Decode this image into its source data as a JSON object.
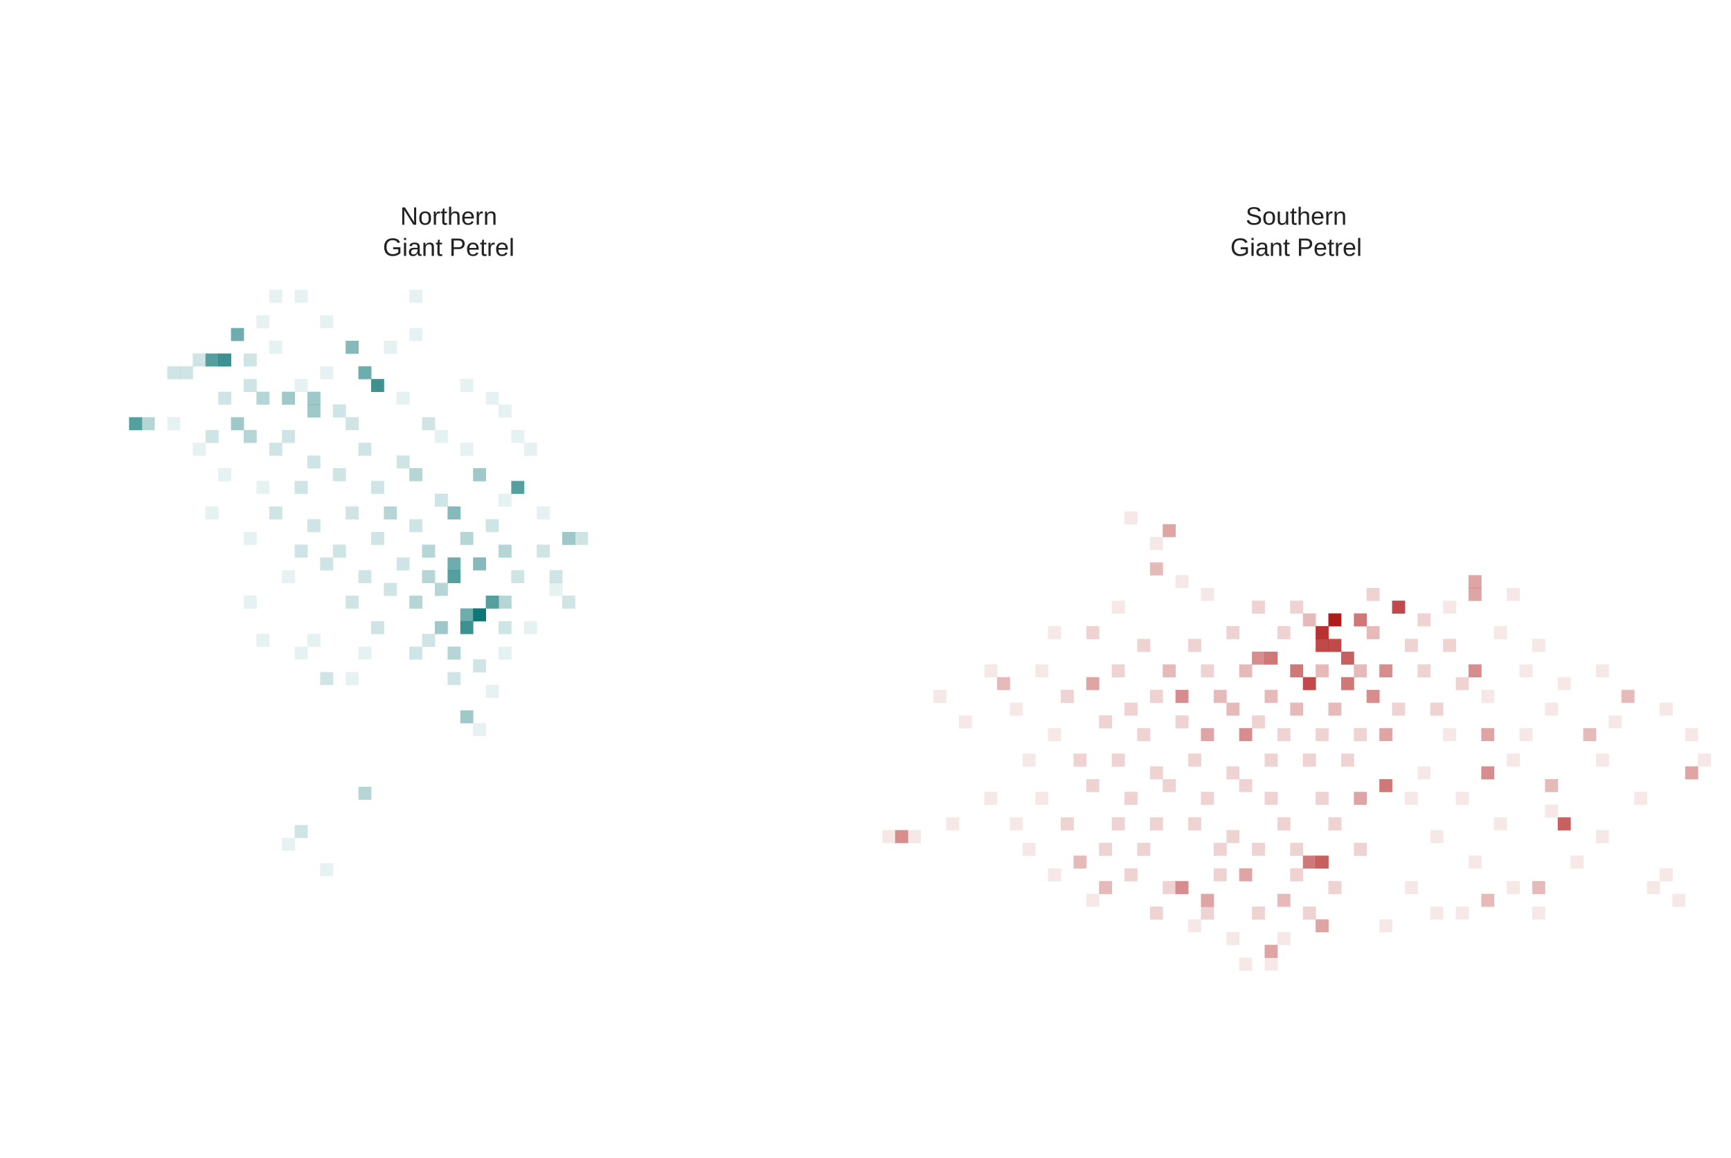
{
  "chart_data": [
    {
      "type": "heatmap",
      "title": [
        "Northern",
        "Giant Petrel"
      ],
      "color": "#0e7676",
      "clim": [
        0,
        10
      ],
      "xlim": [
        0,
        40
      ],
      "ylim": [
        50,
        0
      ],
      "x": [
        8,
        9,
        7,
        1,
        2,
        18,
        19,
        20,
        13,
        15,
        15,
        9,
        31,
        28,
        26,
        35,
        26,
        26,
        28,
        28,
        27,
        29,
        27,
        27,
        19,
        14,
        16,
        35,
        12,
        14,
        23,
        11,
        16,
        23,
        6,
        10,
        12,
        21,
        4,
        5,
        10,
        14,
        16,
        27,
        8,
        11,
        17,
        22,
        29,
        30,
        4,
        7,
        10,
        13,
        18,
        24,
        25,
        31,
        6,
        12,
        15,
        19,
        22,
        27,
        32,
        8,
        11,
        14,
        17,
        20,
        23,
        25,
        30,
        7,
        12,
        15,
        18,
        21,
        23,
        29,
        33,
        10,
        14,
        17,
        20,
        24,
        27,
        30,
        33,
        36,
        13,
        16,
        19,
        22,
        24,
        31,
        34,
        10,
        18,
        21,
        23,
        25,
        30,
        34,
        11,
        15,
        20,
        24,
        25,
        30,
        32,
        14,
        19,
        23,
        26,
        28,
        30,
        18,
        26,
        29,
        28,
        13,
        16
      ],
      "y": [
        6,
        4,
        6,
        11,
        11,
        5,
        7,
        8,
        9,
        9,
        10,
        11,
        16,
        15,
        18,
        20,
        23,
        22,
        22,
        26,
        27,
        25,
        26,
        34,
        40,
        43,
        31,
        25,
        1,
        1,
        1,
        3,
        3,
        4,
        6,
        6,
        5,
        5,
        7,
        7,
        8,
        8,
        7,
        8,
        9,
        9,
        10,
        9,
        9,
        10,
        11,
        12,
        12,
        12,
        11,
        11,
        12,
        12,
        13,
        13,
        14,
        13,
        14,
        13,
        13,
        15,
        16,
        16,
        15,
        16,
        15,
        17,
        17,
        18,
        18,
        19,
        18,
        18,
        19,
        19,
        18,
        20,
        21,
        21,
        20,
        21,
        20,
        21,
        21,
        20,
        23,
        22,
        23,
        22,
        23,
        23,
        23,
        25,
        25,
        24,
        25,
        24,
        25,
        24,
        28,
        28,
        27,
        28,
        27,
        27,
        27,
        29,
        29,
        29,
        29,
        30,
        29,
        31,
        31,
        32,
        35,
        44,
        46
      ],
      "values": [
        8,
        6,
        7,
        7,
        3,
        5,
        6,
        8,
        4,
        4,
        4,
        4,
        7,
        4,
        5,
        4,
        7,
        6,
        5,
        10,
        8,
        7,
        6,
        4,
        3,
        2,
        2,
        2,
        1,
        1,
        1,
        1,
        1,
        1,
        2,
        2,
        1,
        1,
        2,
        2,
        2,
        1,
        1,
        1,
        2,
        3,
        2,
        1,
        1,
        1,
        1,
        2,
        3,
        2,
        2,
        2,
        1,
        1,
        1,
        2,
        2,
        2,
        2,
        1,
        1,
        1,
        1,
        2,
        2,
        2,
        3,
        2,
        1,
        1,
        2,
        2,
        2,
        3,
        2,
        2,
        1,
        1,
        2,
        2,
        2,
        3,
        3,
        3,
        2,
        2,
        1,
        2,
        2,
        2,
        3,
        2,
        2,
        1,
        2,
        2,
        3,
        3,
        3,
        1,
        1,
        1,
        2,
        2,
        4,
        2,
        1,
        1,
        1,
        2,
        3,
        2,
        1,
        1,
        2,
        1,
        1,
        1,
        1
      ]
    },
    {
      "type": "heatmap",
      "title": [
        "Southern",
        "Giant Petrel"
      ],
      "color": "#b01c1c",
      "clim": [
        0,
        10
      ],
      "xlim": [
        0,
        67
      ],
      "ylim": [
        37,
        0
      ],
      "x": [
        36,
        35,
        36,
        35,
        38,
        37,
        41,
        34,
        33,
        31,
        30,
        39,
        37,
        40,
        24,
        29,
        47,
        47,
        47,
        54,
        40,
        38,
        35,
        34,
        2,
        48,
        48,
        64,
        59,
        56,
        23,
        22,
        31,
        35,
        24,
        26,
        17,
        10,
        16,
        18,
        29,
        32,
        40,
        48,
        52,
        53,
        23,
        26,
        27,
        20,
        22,
        24,
        19,
        26,
        30,
        33,
        39,
        43,
        45,
        50,
        14,
        17,
        21,
        25,
        28,
        32,
        34,
        39,
        42,
        45,
        49,
        52,
        9,
        13,
        19,
        26,
        29,
        35,
        38,
        43,
        46,
        51,
        54,
        57,
        5,
        11,
        15,
        20,
        22,
        28,
        31,
        33,
        36,
        41,
        44,
        48,
        53,
        62,
        7,
        14,
        18,
        21,
        24,
        30,
        32,
        35,
        38,
        45,
        51,
        58,
        64,
        12,
        16,
        19,
        22,
        25,
        28,
        31,
        34,
        37,
        43,
        50,
        57,
        65,
        9,
        13,
        17,
        20,
        23,
        26,
        29,
        31,
        35,
        42,
        46,
        53,
        60,
        6,
        11,
        15,
        19,
        22,
        25,
        28,
        32,
        36,
        44,
        49,
        57,
        3,
        1,
        12,
        18,
        21,
        27,
        30,
        33,
        38,
        47,
        55,
        62,
        14,
        20,
        23,
        27,
        33,
        36,
        42,
        50,
        61,
        17,
        22,
        26,
        30,
        34,
        44,
        52,
        63,
        25,
        28,
        32,
        40,
        46,
        29,
        31
      ],
      "y": [
        9,
        10,
        11,
        11,
        9,
        12,
        8,
        14,
        13,
        12,
        12,
        15,
        14,
        13,
        15,
        18,
        13,
        6,
        7,
        25,
        22,
        23,
        28,
        28,
        26,
        21,
        18,
        21,
        15,
        18,
        2,
        5,
        35,
        33,
        30,
        31,
        14,
        14,
        28,
        30,
        29,
        31,
        18,
        31,
        30,
        22,
        13,
        18,
        15,
        1,
        3,
        6,
        8,
        7,
        8,
        8,
        7,
        9,
        8,
        7,
        10,
        10,
        11,
        11,
        10,
        10,
        9,
        10,
        11,
        11,
        10,
        11,
        13,
        13,
        13,
        13,
        13,
        13,
        13,
        13,
        14,
        13,
        14,
        13,
        15,
        16,
        15,
        16,
        15,
        16,
        15,
        16,
        16,
        16,
        16,
        15,
        16,
        16,
        17,
        18,
        17,
        18,
        17,
        17,
        18,
        18,
        18,
        18,
        18,
        17,
        18,
        20,
        20,
        20,
        21,
        20,
        21,
        20,
        20,
        20,
        21,
        20,
        20,
        20,
        23,
        23,
        22,
        23,
        22,
        23,
        22,
        23,
        23,
        23,
        23,
        24,
        23,
        25,
        25,
        25,
        25,
        25,
        25,
        26,
        25,
        25,
        26,
        25,
        26,
        26,
        26,
        27,
        27,
        27,
        27,
        27,
        27,
        27,
        28,
        28,
        29,
        29,
        29,
        30,
        29,
        29,
        30,
        30,
        30,
        30,
        31,
        32,
        32,
        32,
        32,
        32,
        32,
        31,
        33,
        34,
        34,
        33,
        32,
        36,
        36
      ],
      "values": [
        10,
        9,
        8,
        8,
        6,
        7,
        8,
        8,
        6,
        6,
        5,
        5,
        6,
        5,
        5,
        5,
        5,
        4,
        4,
        7,
        6,
        4,
        7,
        6,
        5,
        5,
        4,
        4,
        3,
        3,
        4,
        3,
        4,
        4,
        5,
        4,
        4,
        3,
        3,
        3,
        4,
        3,
        4,
        3,
        3,
        3,
        3,
        4,
        3,
        1,
        1,
        1,
        1,
        1,
        2,
        2,
        2,
        2,
        1,
        1,
        1,
        2,
        2,
        2,
        2,
        2,
        3,
        3,
        2,
        2,
        1,
        1,
        1,
        1,
        2,
        2,
        3,
        3,
        3,
        2,
        2,
        1,
        1,
        1,
        1,
        1,
        2,
        2,
        2,
        3,
        3,
        3,
        3,
        2,
        2,
        1,
        1,
        1,
        1,
        1,
        2,
        2,
        2,
        2,
        2,
        2,
        2,
        1,
        1,
        1,
        1,
        1,
        2,
        2,
        2,
        2,
        2,
        2,
        2,
        2,
        1,
        1,
        1,
        1,
        1,
        1,
        2,
        2,
        2,
        2,
        2,
        2,
        2,
        1,
        1,
        1,
        1,
        1,
        1,
        2,
        2,
        2,
        2,
        2,
        2,
        2,
        1,
        1,
        1,
        1,
        1,
        1,
        2,
        2,
        2,
        2,
        2,
        2,
        1,
        1,
        1,
        1,
        2,
        2,
        2,
        2,
        2,
        1,
        1,
        1,
        1,
        2,
        2,
        2,
        2,
        1,
        1,
        1,
        1,
        1,
        1,
        1,
        1,
        1,
        1
      ]
    }
  ]
}
